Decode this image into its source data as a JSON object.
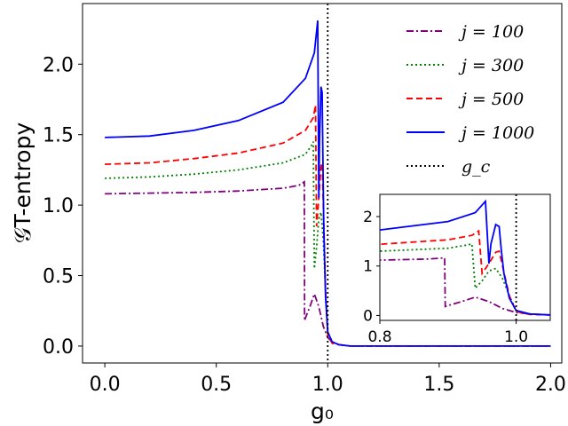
{
  "chart_data": {
    "type": "line",
    "xlabel": "g₀",
    "ylabel": "𝒢T-entropy",
    "xlim": [
      -0.1,
      2.05
    ],
    "ylim": [
      -0.12,
      2.43
    ],
    "xticks": [
      "0.0",
      "0.5",
      "1.0",
      "1.5",
      "2.0"
    ],
    "yticks": [
      "0.0",
      "0.5",
      "1.0",
      "1.5",
      "2.0"
    ],
    "legend_position": "top-right",
    "series": [
      {
        "name": "j = 100",
        "color": "#800080",
        "dash": "dashdot",
        "x": [
          0.0,
          0.2,
          0.4,
          0.6,
          0.8,
          0.87,
          0.895,
          0.896,
          0.9,
          0.92,
          0.94,
          0.96,
          0.98,
          1.0,
          1.02,
          1.05,
          1.1,
          1.5,
          2.0
        ],
        "y": [
          1.08,
          1.085,
          1.09,
          1.1,
          1.12,
          1.14,
          1.165,
          0.18,
          0.2,
          0.28,
          0.37,
          0.28,
          0.14,
          0.06,
          0.03,
          0.01,
          0.0,
          0.0,
          0.0
        ]
      },
      {
        "name": "j = 300",
        "color": "#008000",
        "dash": "dotted",
        "x": [
          0.0,
          0.2,
          0.4,
          0.6,
          0.8,
          0.9,
          0.93,
          0.935,
          0.94,
          0.95,
          0.96,
          0.97,
          0.98,
          0.99,
          1.0,
          1.02,
          1.05,
          1.1,
          1.5,
          2.0
        ],
        "y": [
          1.19,
          1.2,
          1.22,
          1.25,
          1.3,
          1.36,
          1.43,
          1.45,
          0.55,
          0.7,
          0.9,
          0.95,
          0.75,
          0.4,
          0.1,
          0.03,
          0.01,
          0.0,
          0.0,
          0.0
        ]
      },
      {
        "name": "j = 500",
        "color": "#ff0000",
        "dash": "dashed",
        "x": [
          0.0,
          0.2,
          0.4,
          0.6,
          0.8,
          0.9,
          0.935,
          0.945,
          0.95,
          0.96,
          0.97,
          0.975,
          0.98,
          0.99,
          1.0,
          1.02,
          1.05,
          1.1,
          1.5,
          2.0
        ],
        "y": [
          1.29,
          1.3,
          1.33,
          1.37,
          1.44,
          1.53,
          1.62,
          1.71,
          0.85,
          1.05,
          1.28,
          1.3,
          1.0,
          0.4,
          0.08,
          0.02,
          0.01,
          0.0,
          0.0,
          0.0
        ]
      },
      {
        "name": "j = 1000",
        "color": "#0000ff",
        "dash": "solid",
        "x": [
          0.0,
          0.2,
          0.4,
          0.6,
          0.8,
          0.9,
          0.94,
          0.955,
          0.96,
          0.963,
          0.97,
          0.975,
          0.978,
          0.982,
          0.99,
          1.0,
          1.02,
          1.05,
          1.1,
          1.5,
          2.0
        ],
        "y": [
          1.48,
          1.49,
          1.53,
          1.6,
          1.73,
          1.9,
          2.08,
          2.31,
          1.05,
          1.45,
          1.84,
          1.8,
          1.35,
          0.85,
          0.35,
          0.1,
          0.03,
          0.01,
          0.0,
          0.0,
          0.0
        ]
      }
    ],
    "reference_line": {
      "name": "g_c",
      "x": 1.0,
      "color": "#000000",
      "dash": "dotted"
    },
    "inset": {
      "xlim": [
        0.8,
        1.05
      ],
      "ylim": [
        -0.1,
        2.45
      ],
      "xticks": [
        "0.8",
        "1.0"
      ],
      "yticks": [
        "0",
        "1",
        "2"
      ]
    }
  }
}
